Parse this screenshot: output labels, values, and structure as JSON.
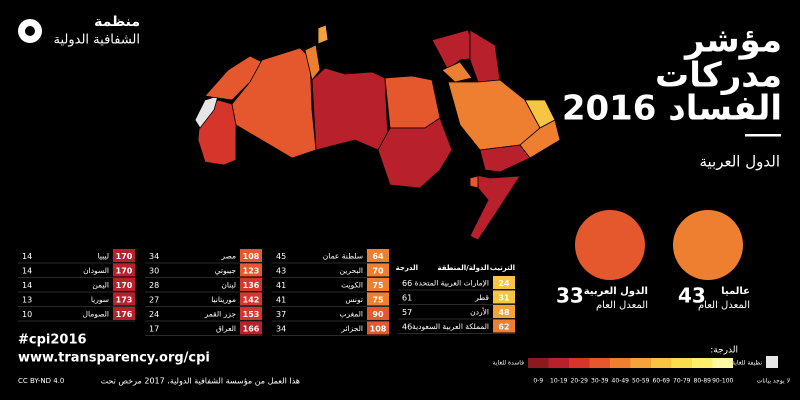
{
  "logo": {
    "line1": "منظمة",
    "line2": "الشفافية الدولية"
  },
  "header": {
    "title_lines": [
      "مؤشر",
      "مدركات",
      "الفساد 2016"
    ],
    "subtitle": "الدول العربية"
  },
  "table": {
    "columns": [
      "الترتيب",
      "الدولة/المنطقة",
      "الدرجة"
    ],
    "groups": [
      [
        {
          "rank": 24,
          "country": "الإمارات العربية المتحدة",
          "score": 66
        },
        {
          "rank": 31,
          "country": "قطر",
          "score": 61
        },
        {
          "rank": 48,
          "country": "الأردن",
          "score": 57
        },
        {
          "rank": 62,
          "country": "المملكة العربية السعودية",
          "score": 46
        }
      ],
      [
        {
          "rank": 64,
          "country": "سلطنة عمان",
          "score": 45
        },
        {
          "rank": 70,
          "country": "البحرين",
          "score": 43
        },
        {
          "rank": 75,
          "country": "الكويت",
          "score": 41
        },
        {
          "rank": 75,
          "country": "تونس",
          "score": 41
        },
        {
          "rank": 90,
          "country": "المغرب",
          "score": 37
        },
        {
          "rank": 108,
          "country": "الجزائر",
          "score": 34
        }
      ],
      [
        {
          "rank": 108,
          "country": "مصر",
          "score": 34
        },
        {
          "rank": 123,
          "country": "جيبوتي",
          "score": 30
        },
        {
          "rank": 136,
          "country": "لبنان",
          "score": 28
        },
        {
          "rank": 142,
          "country": "موريتانيا",
          "score": 27
        },
        {
          "rank": 153,
          "country": "جزر القمر",
          "score": 24
        },
        {
          "rank": 166,
          "country": "العراق",
          "score": 17
        }
      ],
      [
        {
          "rank": 170,
          "country": "ليبيا",
          "score": 14
        },
        {
          "rank": 170,
          "country": "السودان",
          "score": 14
        },
        {
          "rank": 170,
          "country": "اليمن",
          "score": 14
        },
        {
          "rank": 173,
          "country": "سوريا",
          "score": 13
        },
        {
          "rank": 176,
          "country": "الصومال",
          "score": 10
        }
      ]
    ]
  },
  "averages": [
    {
      "label": "الدول العربية",
      "sublabel": "المعدل العام",
      "value": 33
    },
    {
      "label": "عالميا",
      "sublabel": "المعدل العام",
      "value": 43
    }
  ],
  "legend": {
    "title": "الدرجة:",
    "low": "فاسدة للغاية",
    "high": "نظيفة للغاية",
    "no_data": "لا يوجد بيانات",
    "no_data_color": "#e6e6e6",
    "bins": [
      {
        "label": "0-9",
        "color": "#8a1a1f"
      },
      {
        "label": "10-19",
        "color": "#b8202b"
      },
      {
        "label": "20-29",
        "color": "#d6352b"
      },
      {
        "label": "30-39",
        "color": "#e5582d"
      },
      {
        "label": "40-49",
        "color": "#ef7f30"
      },
      {
        "label": "50-59",
        "color": "#f4a23a"
      },
      {
        "label": "60-69",
        "color": "#f8c443"
      },
      {
        "label": "70-79",
        "color": "#fbde4e"
      },
      {
        "label": "80-89",
        "color": "#fdee6c"
      },
      {
        "label": "90-100",
        "color": "#fff6a6"
      }
    ]
  },
  "footer": {
    "hashtag": "#cpi2016",
    "url": "www.transparency.org/cpi",
    "license": "CC BY-ND 4.0",
    "credit": "هذا العمل من مؤسسة الشفافية الدولية، 2017 مرخص تحت"
  }
}
